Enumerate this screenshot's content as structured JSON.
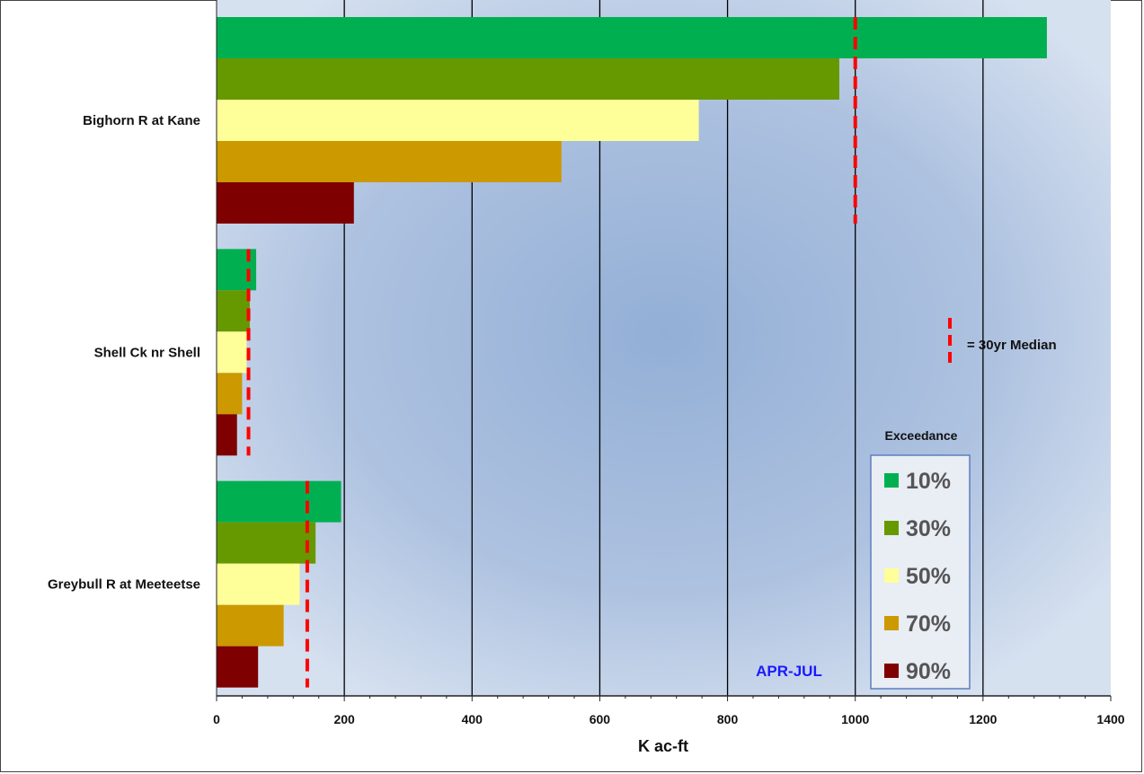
{
  "chart_data": {
    "type": "bar",
    "orientation": "horizontal",
    "categories": [
      "Bighorn R at Kane",
      "Shell Ck nr Shell",
      "Greybull R at Meeteetse"
    ],
    "series": [
      {
        "name": "10%",
        "color": "#00b050",
        "values": [
          1300,
          62,
          195
        ]
      },
      {
        "name": "30%",
        "color": "#669900",
        "values": [
          975,
          52,
          155
        ]
      },
      {
        "name": "50%",
        "color": "#ffff99",
        "values": [
          755,
          47,
          130
        ]
      },
      {
        "name": "70%",
        "color": "#cc9900",
        "values": [
          540,
          40,
          105
        ]
      },
      {
        "name": "90%",
        "color": "#7f0000",
        "values": [
          215,
          32,
          65
        ]
      }
    ],
    "medians": [
      1000,
      50,
      142
    ],
    "median_color": "#ff0000",
    "xlabel": "K ac-ft",
    "ylabel": "",
    "xlim": [
      0,
      1400
    ],
    "xticks": [
      "0",
      "200",
      "400",
      "600",
      "800",
      "1000",
      "1200",
      "1400"
    ],
    "grid": "vertical",
    "legend": {
      "title": "Exceedance",
      "placement": "bottom-right"
    },
    "median_legend_label": "= 30yr Median",
    "annotation": "APR-JUL"
  }
}
